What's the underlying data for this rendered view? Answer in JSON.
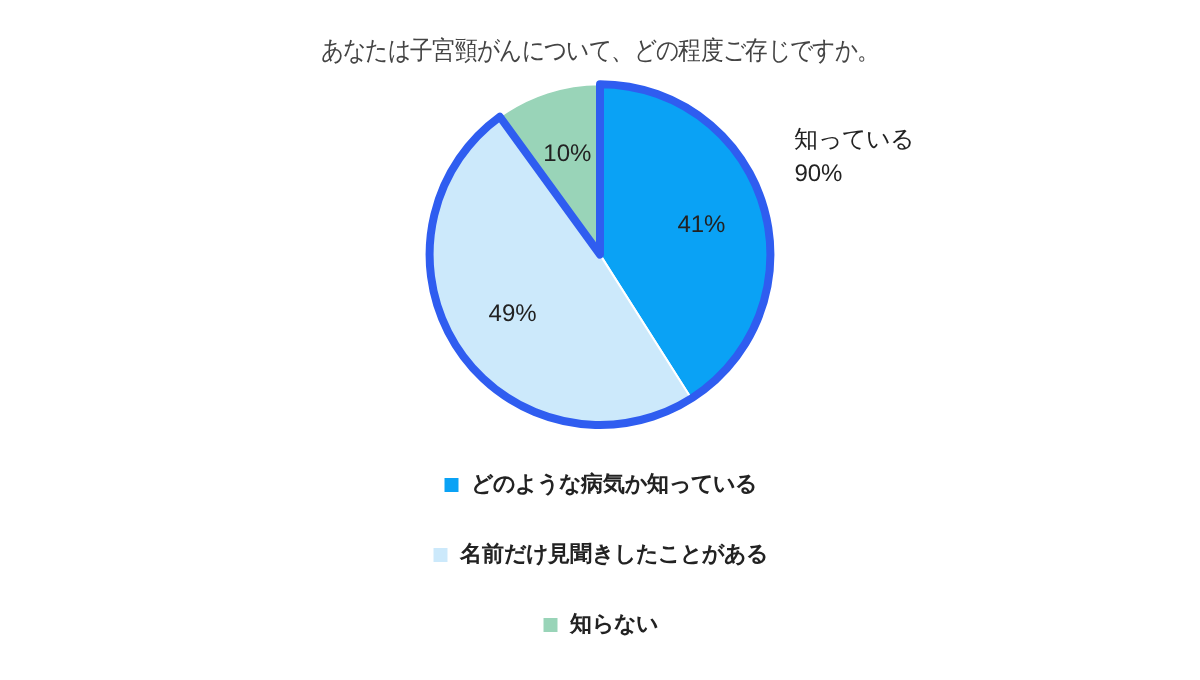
{
  "chart_data": {
    "type": "pie",
    "title": "あなたは子宮頸がんについて、どの程度ご存じですか。",
    "categories": [
      "どのような病気か知っている",
      "名前だけ見聞きしたことがある",
      "知らない"
    ],
    "values": [
      41,
      49,
      10
    ],
    "colors": [
      "#0aa2f5",
      "#cce9fb",
      "#99d4b8"
    ],
    "value_labels": [
      "41%",
      "49%",
      "10%"
    ],
    "annotations": [
      "知っている\n90%"
    ],
    "legend": "bottom"
  }
}
